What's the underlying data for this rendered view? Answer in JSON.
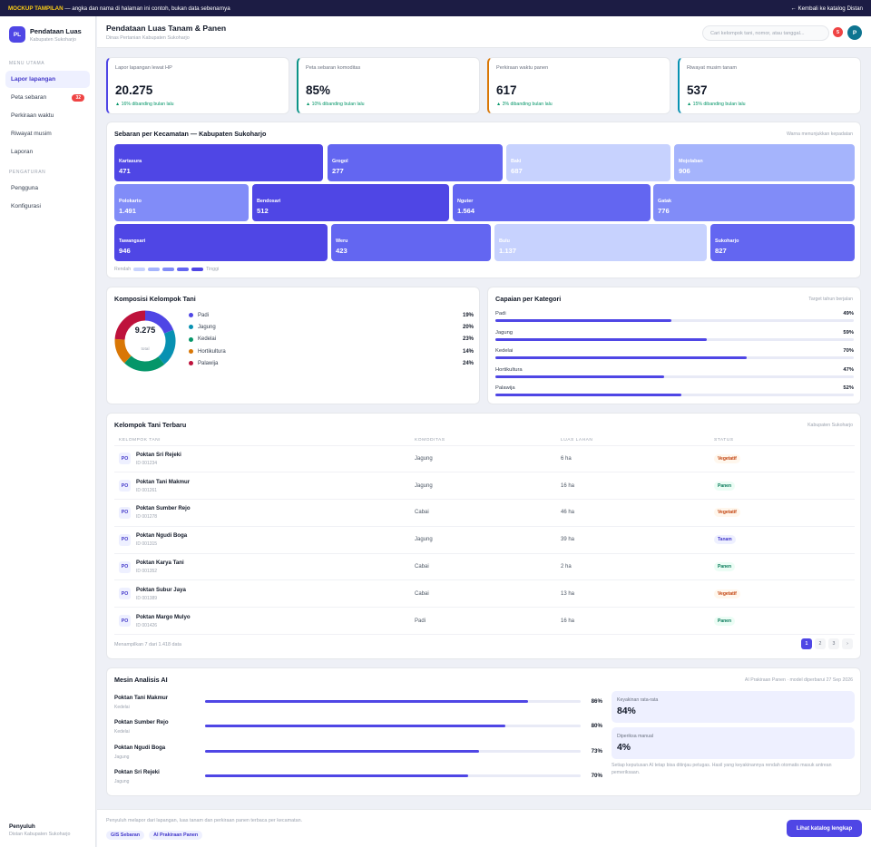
{
  "banner": {
    "tag": "MOCKUP TAMPILAN",
    "text": " — angka dan nama di halaman ini contoh, bukan data sebenarnya",
    "back_link": "← Kembali ke katalog Distan"
  },
  "sidebar": {
    "logo": "PL",
    "app_name": "Pendataan Luas",
    "app_sub": "Kabupaten Sukoharjo",
    "section_main": "MENU UTAMA",
    "items_main": [
      {
        "label": "Lapor lapangan",
        "active": true
      },
      {
        "label": "Peta sebaran",
        "badge": "32"
      },
      {
        "label": "Perkiraan waktu"
      },
      {
        "label": "Riwayat musim"
      },
      {
        "label": "Laporan"
      }
    ],
    "section_settings": "PENGATURAN",
    "items_settings": [
      {
        "label": "Pengguna"
      },
      {
        "label": "Konfigurasi"
      }
    ],
    "footer_title": "Penyuluh",
    "footer_sub": "Distan Kabupaten Sukoharjo"
  },
  "header": {
    "title": "Pendataan Luas Tanam & Panen",
    "subtitle": "Dinas Pertanian Kabupaten Sukoharjo",
    "search_placeholder": "Cari kelompok tani, nomor, atau tanggal...",
    "notif_count": "5",
    "avatar": "P"
  },
  "stats": [
    {
      "label": "Lapor lapangan lewat HP",
      "value": "20.275",
      "delta": "▲ 16% dibanding bulan lalu",
      "color": "#4f46e5"
    },
    {
      "label": "Peta sebaran komoditas",
      "value": "85%",
      "delta": "▲ 10% dibanding bulan lalu",
      "color": "#0d9488"
    },
    {
      "label": "Perkiraan waktu panen",
      "value": "617",
      "delta": "▲ 3% dibanding bulan lalu",
      "color": "#d97706"
    },
    {
      "label": "Riwayat musim tanam",
      "value": "537",
      "delta": "▲ 15% dibanding bulan lalu",
      "color": "#0891b2"
    }
  ],
  "treemap": {
    "title": "Sebaran per Kecamatan — Kabupaten Sukoharjo",
    "note": "Warna menunjukkan kepadatan",
    "tiles": [
      {
        "name": "Kartasura",
        "value": "471",
        "level": 5
      },
      {
        "name": "Grogol",
        "value": "277",
        "level": 4
      },
      {
        "name": "Baki",
        "value": "687",
        "level": 1
      },
      {
        "name": "Mojolaban",
        "value": "906",
        "level": 2
      },
      {
        "name": "Polokarto",
        "value": "1.491",
        "level": 3
      },
      {
        "name": "Bendosari",
        "value": "512",
        "level": 5
      },
      {
        "name": "Nguter",
        "value": "1.564",
        "level": 4
      },
      {
        "name": "Gatak",
        "value": "776",
        "level": 3
      },
      {
        "name": "Tawangsari",
        "value": "946",
        "level": 5
      },
      {
        "name": "Weru",
        "value": "423",
        "level": 4
      },
      {
        "name": "Bulu",
        "value": "1.137",
        "level": 1
      },
      {
        "name": "Sukoharjo",
        "value": "827",
        "level": 4
      }
    ],
    "scale_low": "Rendah",
    "scale_high": "Tinggi",
    "scale_colors": [
      "#c7d2fe",
      "#a5b4fc",
      "#818cf8",
      "#6366f1",
      "#4f46e5"
    ]
  },
  "composition": {
    "title": "Komposisi Kelompok Tani",
    "total": "9.275",
    "total_label": "total",
    "items": [
      {
        "label": "Padi",
        "pct": "19%",
        "value": 19,
        "color": "#4f46e5"
      },
      {
        "label": "Jagung",
        "pct": "20%",
        "value": 20,
        "color": "#0891b2"
      },
      {
        "label": "Kedelai",
        "pct": "23%",
        "value": 23,
        "color": "#059669"
      },
      {
        "label": "Hortikultura",
        "pct": "14%",
        "value": 14,
        "color": "#d97706"
      },
      {
        "label": "Palawija",
        "pct": "24%",
        "value": 24,
        "color": "#be123c"
      }
    ]
  },
  "achievement": {
    "title": "Capaian per Kategori",
    "note": "Target tahun berjalan",
    "items": [
      {
        "label": "Padi",
        "pct": "49%",
        "value": 49
      },
      {
        "label": "Jagung",
        "pct": "59%",
        "value": 59
      },
      {
        "label": "Kedelai",
        "pct": "70%",
        "value": 70
      },
      {
        "label": "Hortikultura",
        "pct": "47%",
        "value": 47
      },
      {
        "label": "Palawija",
        "pct": "52%",
        "value": 52
      }
    ]
  },
  "groups": {
    "title": "Kelompok Tani Terbaru",
    "note": "Kabupaten Sukoharjo",
    "columns": [
      "KELOMPOK TANI",
      "KOMODITAS",
      "LUAS LAHAN",
      "STATUS"
    ],
    "rows": [
      {
        "initials": "PO",
        "name": "Poktan Sri Rejeki",
        "id": "ID 001234",
        "commodity": "Jagung",
        "area": "6 ha",
        "status": "Vegetatif",
        "kind": "vege"
      },
      {
        "initials": "PO",
        "name": "Poktan Tani Makmur",
        "id": "ID 001261",
        "commodity": "Jagung",
        "area": "16 ha",
        "status": "Panen",
        "kind": "panen"
      },
      {
        "initials": "PO",
        "name": "Poktan Sumber Rejo",
        "id": "ID 001278",
        "commodity": "Cabai",
        "area": "46 ha",
        "status": "Vegetatif",
        "kind": "vege"
      },
      {
        "initials": "PO",
        "name": "Poktan Ngudi Boga",
        "id": "ID 001315",
        "commodity": "Jagung",
        "area": "39 ha",
        "status": "Tanam",
        "kind": "tanam"
      },
      {
        "initials": "PO",
        "name": "Poktan Karya Tani",
        "id": "ID 001352",
        "commodity": "Cabai",
        "area": "2 ha",
        "status": "Panen",
        "kind": "panen"
      },
      {
        "initials": "PO",
        "name": "Poktan Subur Jaya",
        "id": "ID 001389",
        "commodity": "Cabai",
        "area": "13 ha",
        "status": "Vegetatif",
        "kind": "vege"
      },
      {
        "initials": "PO",
        "name": "Poktan Margo Mulyo",
        "id": "ID 001426",
        "commodity": "Padi",
        "area": "16 ha",
        "status": "Panen",
        "kind": "panen"
      }
    ],
    "summary": "Menampilkan 7 dari 1.418 data",
    "pages": [
      "1",
      "2",
      "3",
      "›"
    ]
  },
  "ai": {
    "title": "Mesin Analisis AI",
    "note": "AI Prakiraan Panen · model diperbarui 27 Sep 2026",
    "rows": [
      {
        "name": "Poktan Tani Makmur",
        "kind": "Kedelai",
        "pct": "86%",
        "value": 86
      },
      {
        "name": "Poktan Sumber Rejo",
        "kind": "Kedelai",
        "pct": "80%",
        "value": 80
      },
      {
        "name": "Poktan Ngudi Boga",
        "kind": "Jagung",
        "pct": "73%",
        "value": 73
      },
      {
        "name": "Poktan Sri Rejeki",
        "kind": "Jagung",
        "pct": "70%",
        "value": 70
      }
    ],
    "conf_label": "Keyakinan rata-rata",
    "conf_value": "84%",
    "manual_label": "Diperiksa manual",
    "manual_value": "4%",
    "disclaimer": "Setiap keputusan AI tetap bisa ditinjau petugas. Hasil yang keyakinannya rendah otomatis masuk antrean pemeriksaan."
  },
  "footer": {
    "text": "Penyuluh melapor dari lapangan, luas tanam dan perkiraan panen terbaca per kecamatan.",
    "chips": [
      "GIS Sebaran",
      "AI Prakiraan Panen"
    ],
    "cta": "Lihat katalog lengkap"
  }
}
